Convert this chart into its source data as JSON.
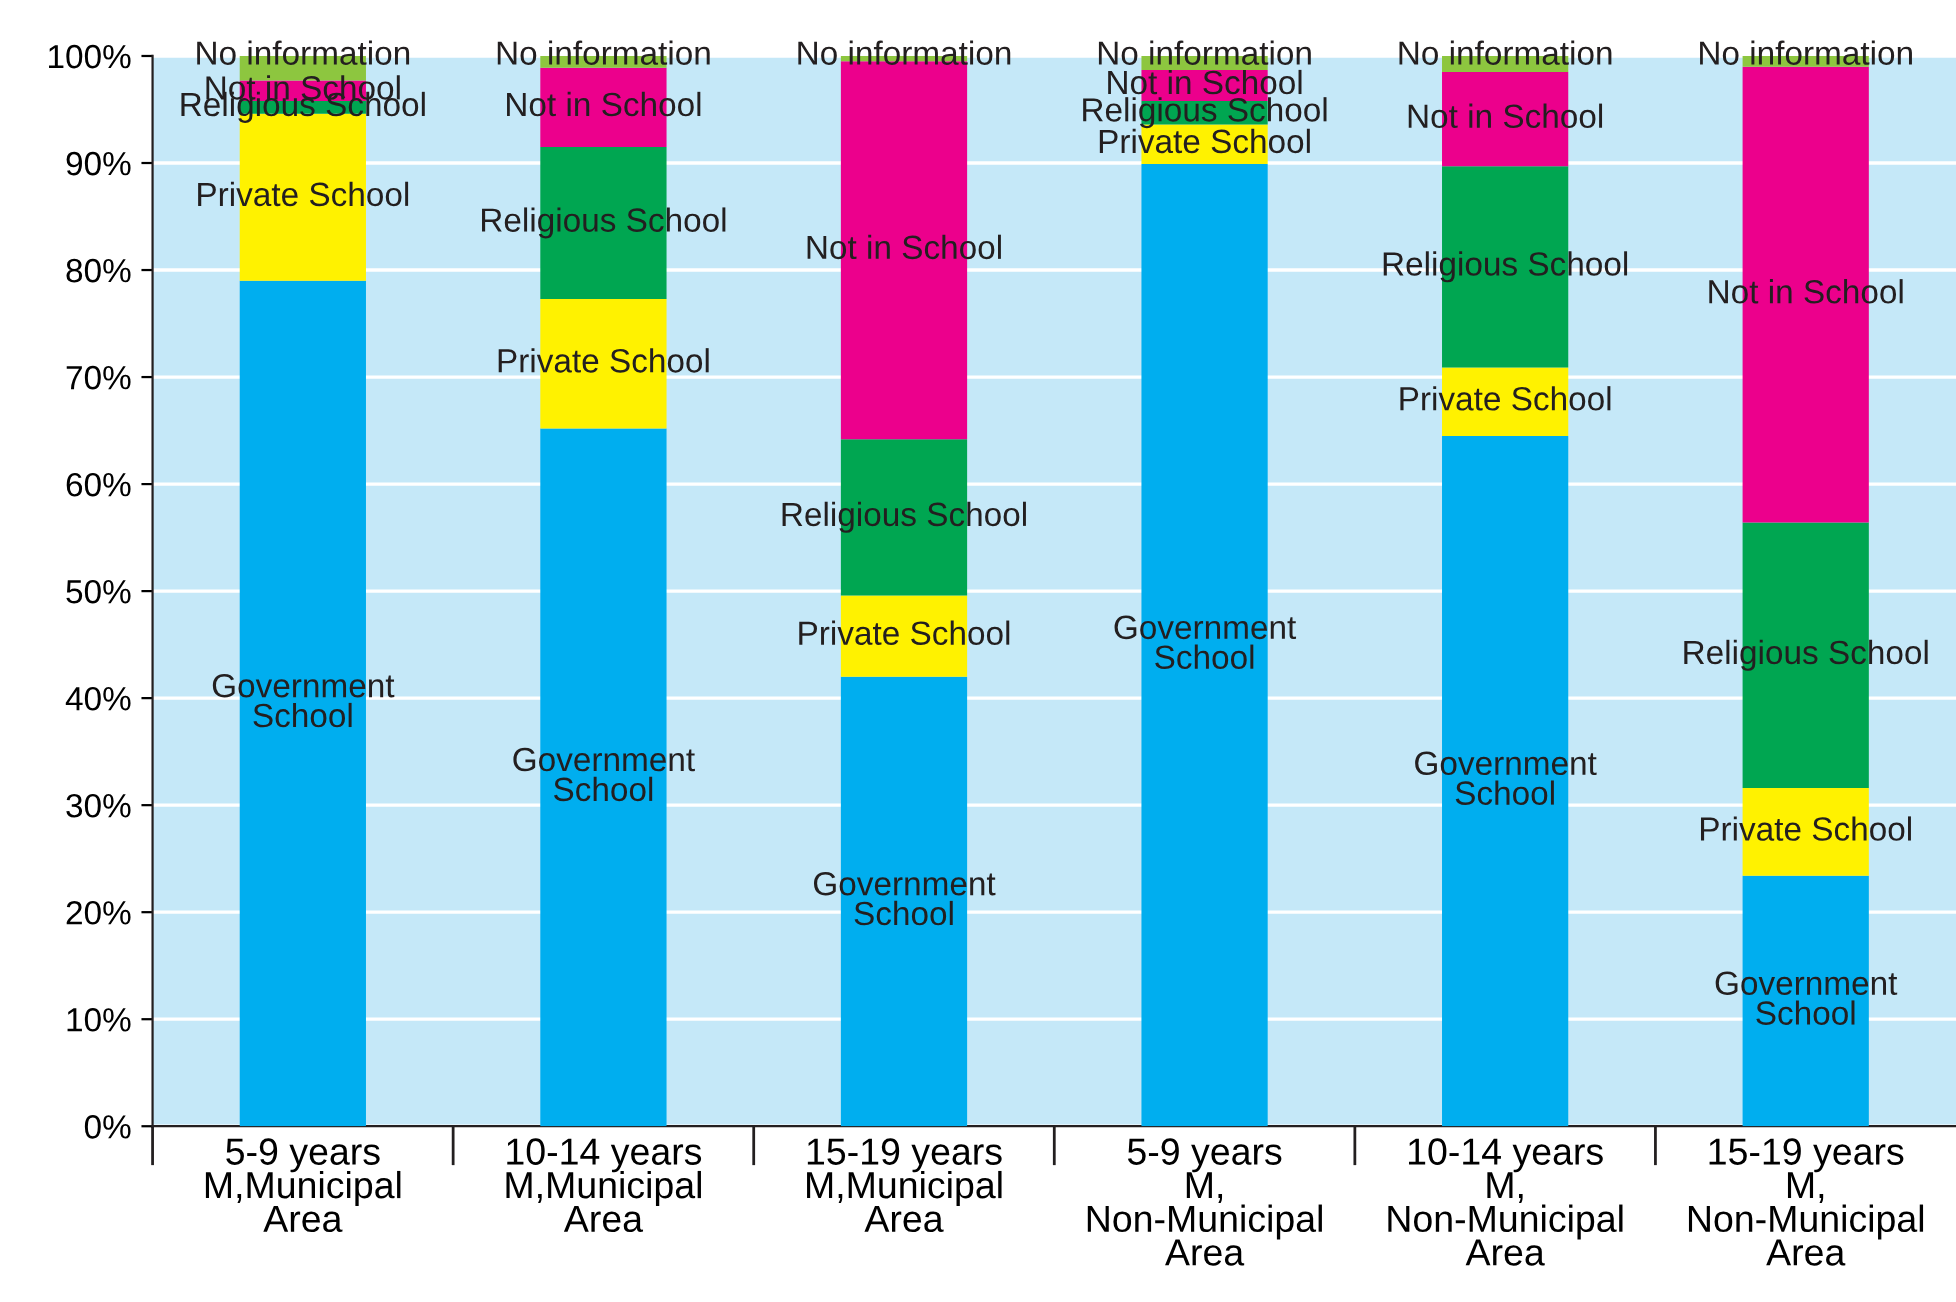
{
  "chart_data": {
    "type": "bar",
    "stacked": true,
    "categories": [
      "5-9 years\nM,Municipal\nArea",
      "10-14 years\nM,Municipal\nArea",
      "15-19 years\nM,Municipal\nArea",
      "5-9 years\nM,\nNon-Municipal\nArea",
      "10-14 years\nM,\nNon-Municipal\nArea",
      "15-19 years\nM,\nNon-Municipal\nArea"
    ],
    "series": [
      {
        "name": "Government\nSchool",
        "color": "#00aeef",
        "values": [
          79.0,
          65.2,
          42.0,
          89.9,
          64.5,
          23.4
        ]
      },
      {
        "name": "Private School",
        "color": "#fff200",
        "values": [
          15.6,
          12.1,
          7.6,
          3.7,
          6.4,
          8.2
        ]
      },
      {
        "name": "Religious School",
        "color": "#00a651",
        "values": [
          1.2,
          14.2,
          14.6,
          2.2,
          18.8,
          24.8
        ]
      },
      {
        "name": "Not in School",
        "color": "#ec008c",
        "values": [
          1.9,
          7.4,
          35.3,
          2.9,
          8.8,
          42.6
        ]
      },
      {
        "name": "No information",
        "color": "#8dc63f",
        "values": [
          2.3,
          1.1,
          0.5,
          1.3,
          1.5,
          1.0
        ]
      }
    ],
    "ylim": [
      0,
      100
    ],
    "yticks": [
      {
        "value": 0,
        "label": "0%"
      },
      {
        "value": 10,
        "label": "10%"
      },
      {
        "value": 20,
        "label": "20%"
      },
      {
        "value": 30,
        "label": "30%"
      },
      {
        "value": 40,
        "label": "40%"
      },
      {
        "value": 50,
        "label": "50%"
      },
      {
        "value": 60,
        "label": "60%"
      },
      {
        "value": 70,
        "label": "70%"
      },
      {
        "value": 80,
        "label": "80%"
      },
      {
        "value": 90,
        "label": "90%"
      },
      {
        "value": 100,
        "label": "100%"
      }
    ],
    "grid": "y",
    "legend": false
  }
}
